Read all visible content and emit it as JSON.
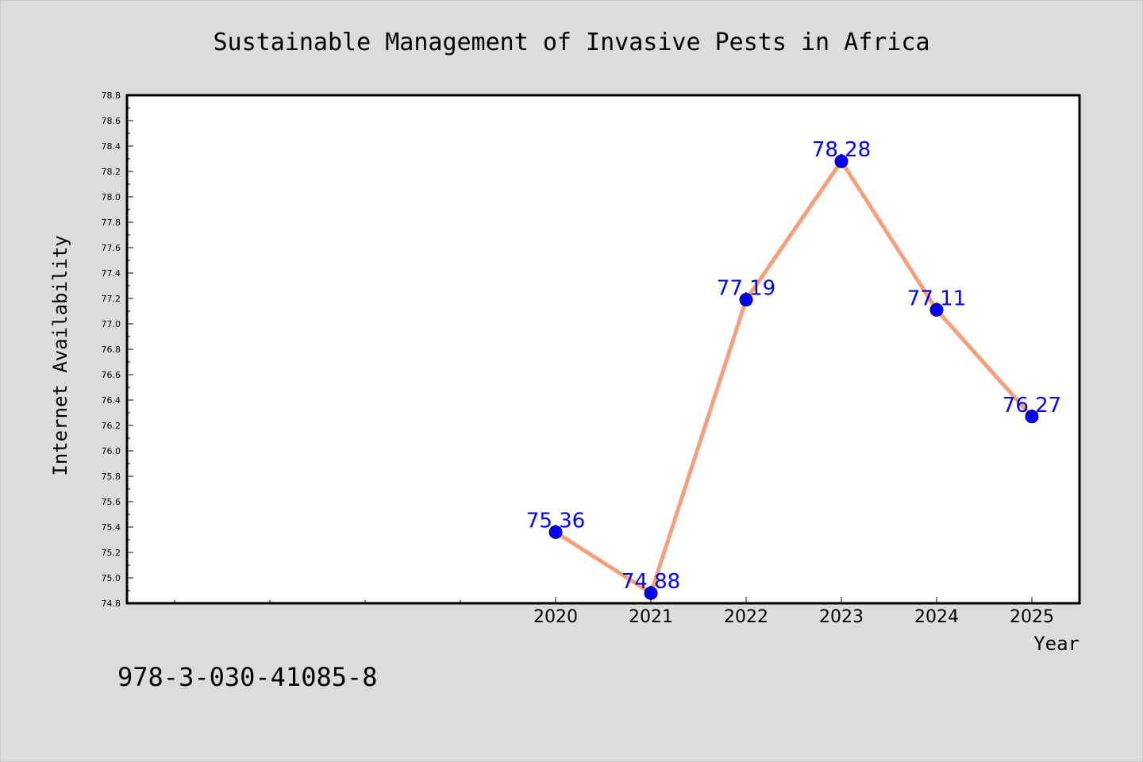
{
  "chart_data": {
    "type": "line",
    "title": "Sustainable Management of Invasive Pests in Africa",
    "xlabel": "Year",
    "ylabel": "Internet Availability",
    "x": [
      "2020",
      "2021",
      "2022",
      "2023",
      "2024",
      "2025"
    ],
    "series": [
      {
        "values": [
          75.36,
          74.88,
          77.19,
          78.28,
          77.11,
          76.27
        ]
      }
    ],
    "data_labels": [
      "75.36",
      "74.88",
      "77.19",
      "78.28",
      "77.11",
      "76.27"
    ],
    "ylim": [
      74.8,
      78.8
    ],
    "xlim": [
      2015.5,
      2025.5
    ],
    "y_ticks": [
      "74.8",
      "75.0",
      "75.2",
      "75.4",
      "75.6",
      "75.8",
      "76.0",
      "76.2",
      "76.4",
      "76.6",
      "76.8",
      "77.0",
      "77.2",
      "77.4",
      "77.6",
      "77.8",
      "78.0",
      "78.2",
      "78.4",
      "78.6",
      "78.8"
    ],
    "grid": false,
    "legend": "none",
    "colors": {
      "line": "#f4a07c",
      "marker": "#0000ff",
      "data_label": "#0000ff",
      "plot_background": "#ffffff",
      "figure_background": "#dcdcdc"
    }
  },
  "footer": {
    "isbn": "978-3-030-41085-8"
  }
}
